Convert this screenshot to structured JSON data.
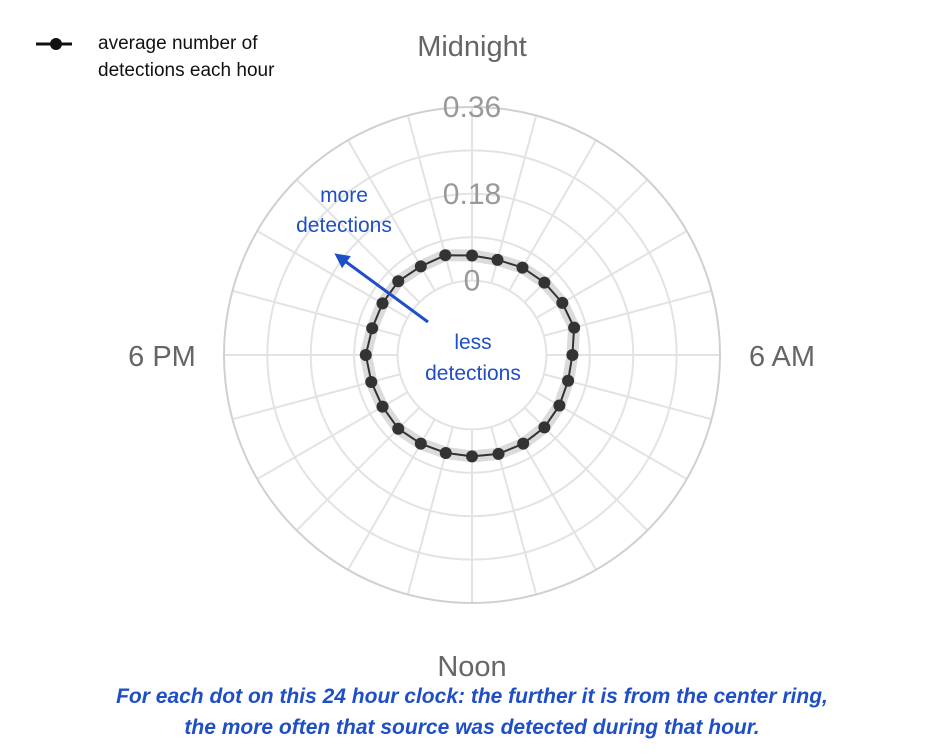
{
  "legend": {
    "label": "average number of detections each hour"
  },
  "annotations": {
    "more": "more detections",
    "less": "less detections"
  },
  "caption": {
    "line1": "For each dot on this 24 hour clock: the further it is from the center ring,",
    "line2": "the more often that source was detected during that hour."
  },
  "colors": {
    "series": "#333333",
    "series_halo": "#cccccc",
    "grid": "#e3e3e3",
    "outer_ring": "#d0d0d0",
    "hour_labels": "#666666",
    "annotation": "#1f4fc6"
  },
  "chart_data": {
    "type": "radar",
    "hour_labels": [
      {
        "hour": 0,
        "label": "Midnight"
      },
      {
        "hour": 6,
        "label": "6 AM"
      },
      {
        "hour": 12,
        "label": "Noon"
      },
      {
        "hour": 18,
        "label": "6 PM"
      }
    ],
    "radial_ticks": [
      "0",
      "0.18",
      "0.36"
    ],
    "radial_tick_values": [
      0,
      0.18,
      0.36
    ],
    "rlim": [
      0,
      0.36
    ],
    "center_offset_fraction": 0.3,
    "grid": true,
    "legend_position": "top-left",
    "hours": [
      0,
      1,
      2,
      3,
      4,
      5,
      6,
      7,
      8,
      9,
      10,
      11,
      12,
      13,
      14,
      15,
      16,
      17,
      18,
      19,
      20,
      21,
      22,
      23
    ],
    "series": [
      {
        "name": "average number of detections each hour",
        "values": [
          0.052,
          0.05,
          0.055,
          0.058,
          0.062,
          0.065,
          0.054,
          0.052,
          0.055,
          0.058,
          0.058,
          0.058,
          0.056,
          0.056,
          0.058,
          0.062,
          0.06,
          0.062,
          0.066,
          0.06,
          0.06,
          0.062,
          0.058,
          0.06
        ]
      }
    ]
  }
}
